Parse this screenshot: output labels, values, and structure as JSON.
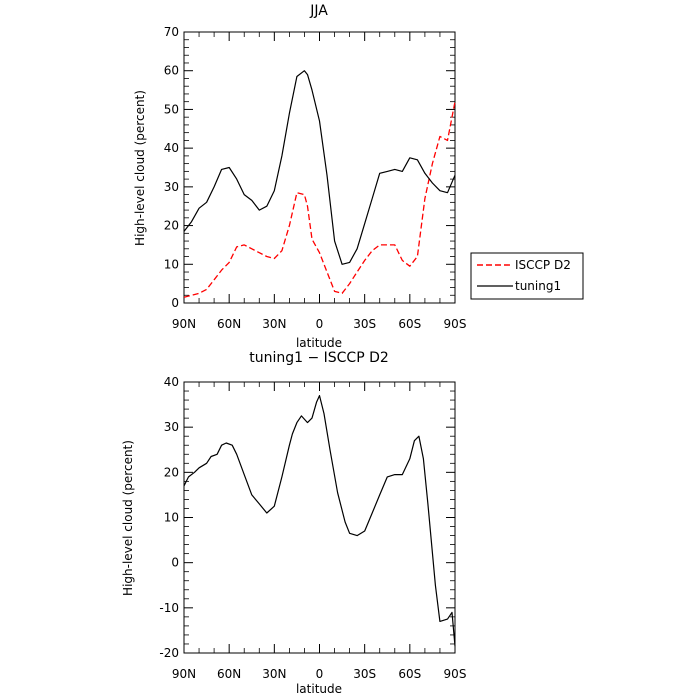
{
  "chart_data": [
    {
      "type": "line",
      "title": "JJA",
      "xlabel": "latitude",
      "ylabel": "High-level cloud (percent)",
      "ylim": [
        0,
        70
      ],
      "yticks": [
        0,
        10,
        20,
        30,
        40,
        50,
        60,
        70
      ],
      "xlim": [
        90,
        -90
      ],
      "xticks": [
        90,
        60,
        30,
        0,
        -30,
        -60,
        -90
      ],
      "xticklabels": [
        "90N",
        "60N",
        "30N",
        "0",
        "30S",
        "60S",
        "90S"
      ],
      "grid": false,
      "legend": "right",
      "series": [
        {
          "name": "ISCCP D2",
          "color": "#ff0000",
          "dash": "dashed",
          "x": [
            90,
            85,
            80,
            75,
            70,
            65,
            60,
            55,
            50,
            45,
            40,
            35,
            30,
            25,
            20,
            15,
            10,
            8,
            5,
            0,
            -5,
            -10,
            -15,
            -20,
            -25,
            -30,
            -35,
            -40,
            -45,
            -50,
            -55,
            -60,
            -65,
            -70,
            -75,
            -80,
            -85,
            -90
          ],
          "values": [
            1.5,
            2,
            2.5,
            3.5,
            6,
            8.5,
            10.5,
            14.5,
            15,
            14,
            13,
            12,
            11.5,
            13.5,
            20,
            28.5,
            28,
            25,
            16.5,
            13,
            8,
            3,
            2.5,
            5,
            8,
            11,
            13.5,
            15,
            15,
            15,
            11,
            9.5,
            12,
            27,
            36,
            43,
            42,
            52
          ]
        },
        {
          "name": "tuning1",
          "color": "#000000",
          "dash": "solid",
          "x": [
            90,
            85,
            80,
            75,
            70,
            65,
            60,
            55,
            50,
            45,
            40,
            35,
            30,
            25,
            20,
            15,
            10,
            8,
            5,
            0,
            -5,
            -10,
            -15,
            -20,
            -25,
            -30,
            -35,
            -40,
            -45,
            -50,
            -55,
            -60,
            -65,
            -70,
            -75,
            -80,
            -85,
            -90
          ],
          "values": [
            18.5,
            21,
            24.5,
            26,
            30,
            34.5,
            35,
            32,
            28,
            26.5,
            24,
            25,
            29,
            38,
            49,
            58.5,
            60,
            59,
            55,
            47,
            33,
            16,
            10,
            10.5,
            14,
            20.5,
            27,
            33.5,
            34,
            34.5,
            34,
            37.5,
            37,
            33.5,
            31,
            29,
            28.5,
            33
          ]
        }
      ]
    },
    {
      "type": "line",
      "title": "tuning1 − ISCCP D2",
      "xlabel": "latitude",
      "ylabel": "High-level cloud (percent)",
      "ylim": [
        -20,
        40
      ],
      "yticks": [
        -20,
        -10,
        0,
        10,
        20,
        30,
        40
      ],
      "xlim": [
        90,
        -90
      ],
      "xticks": [
        90,
        60,
        30,
        0,
        -30,
        -60,
        -90
      ],
      "xticklabels": [
        "90N",
        "60N",
        "30N",
        "0",
        "30S",
        "60S",
        "90S"
      ],
      "grid": false,
      "series": [
        {
          "color": "#000000",
          "dash": "solid",
          "x": [
            90,
            87,
            83,
            80,
            75,
            72,
            68,
            65,
            62,
            58,
            55,
            50,
            45,
            40,
            35,
            30,
            25,
            20,
            18,
            15,
            12,
            8,
            5,
            2,
            0,
            -3,
            -7,
            -12,
            -17,
            -20,
            -25,
            -30,
            -35,
            -40,
            -45,
            -50,
            -55,
            -60,
            -63,
            -66,
            -69,
            -72,
            -77,
            -80,
            -85,
            -88,
            -90
          ],
          "values": [
            17,
            19,
            20,
            21,
            22,
            23.5,
            24,
            26,
            26.5,
            26,
            24,
            19.5,
            15,
            13,
            11,
            12.5,
            19,
            26,
            28.5,
            31,
            32.5,
            31,
            32,
            35.5,
            37,
            33,
            25,
            15.5,
            9,
            6.5,
            6,
            7,
            11,
            15,
            19,
            19.5,
            19.5,
            23,
            27,
            28,
            23,
            13,
            -5,
            -13,
            -12.5,
            -11,
            -18.5
          ]
        }
      ]
    }
  ]
}
